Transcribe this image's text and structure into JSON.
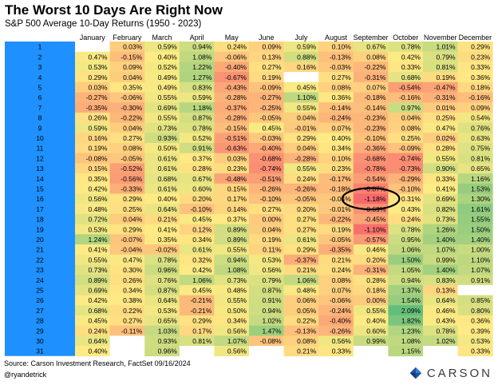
{
  "title": "The Worst 10 Days Are Right Now",
  "subtitle": "S&P 500 Average 10-Day Returns (1950 - 2023)",
  "source": "Source: Carson Investment Research, FactSet 09/16/2024",
  "handle": "@ryandetrick",
  "logo_text": "CARSON",
  "colors": {
    "row_label_bg": "#1e90ff",
    "circle": "#000000",
    "red": "#f8696b",
    "yellow": "#ffeb84",
    "green": "#63be7b"
  },
  "chart_data": {
    "type": "heatmap",
    "title": "The Worst 10 Days Are Right Now",
    "subtitle": "S&P 500 Average 10-Day Returns (1950 - 2023)",
    "columns": [
      "January",
      "February",
      "March",
      "April",
      "May",
      "June",
      "July",
      "August",
      "September",
      "October",
      "November",
      "December"
    ],
    "rows": [
      "1",
      "2",
      "3",
      "4",
      "5",
      "6",
      "7",
      "8",
      "9",
      "10",
      "11",
      "12",
      "13",
      "14",
      "15",
      "16",
      "17",
      "18",
      "19",
      "20",
      "21",
      "22",
      "23",
      "24",
      "25",
      "26",
      "27",
      "28",
      "29",
      "30",
      "31"
    ],
    "values": [
      [
        null,
        0.03,
        0.59,
        0.94,
        0.24,
        0.09,
        0.59,
        0.1,
        0.67,
        0.78,
        1.01,
        0.29
      ],
      [
        0.47,
        -0.15,
        0.4,
        1.08,
        -0.06,
        0.13,
        0.88,
        -0.13,
        0.08,
        0.42,
        0.79,
        0.23
      ],
      [
        0.53,
        0.09,
        0.52,
        1.22,
        -0.4,
        0.27,
        0.16,
        -0.03,
        -0.22,
        0.33,
        0.81,
        0.33
      ],
      [
        0.29,
        0.04,
        0.49,
        1.27,
        -0.67,
        0.19,
        null,
        0.27,
        -0.31,
        0.68,
        0.19,
        0.36
      ],
      [
        0.03,
        0.35,
        0.49,
        0.83,
        -0.43,
        -0.09,
        0.45,
        0.08,
        0.07,
        -0.54,
        -0.47,
        0.18
      ],
      [
        -0.27,
        -0.06,
        0.55,
        0.59,
        -0.28,
        -0.27,
        1.1,
        0.36,
        -0.18,
        -0.16,
        -0.31,
        -0.16
      ],
      [
        -0.35,
        -0.3,
        0.69,
        1.18,
        -0.37,
        -0.25,
        0.55,
        -0.14,
        -0.14,
        0.97,
        0.01,
        0.09
      ],
      [
        0.26,
        -0.22,
        0.55,
        0.87,
        -0.28,
        -0.05,
        0.04,
        -0.24,
        -0.23,
        0.04,
        0.25,
        0.54
      ],
      [
        0.59,
        0.04,
        0.73,
        0.78,
        -0.15,
        0.45,
        -0.01,
        0.07,
        -0.23,
        0.08,
        0.47,
        0.76
      ],
      [
        0.16,
        0.27,
        0.93,
        0.52,
        -0.51,
        -0.03,
        0.29,
        0.4,
        -0.1,
        0.25,
        0.02,
        0.63
      ],
      [
        0.19,
        0.08,
        0.5,
        0.91,
        -0.63,
        -0.4,
        0.04,
        0.34,
        -0.36,
        -0.09,
        0.28,
        0.75
      ],
      [
        -0.08,
        -0.05,
        0.61,
        0.37,
        0.03,
        -0.68,
        -0.28,
        0.1,
        -0.68,
        -0.74,
        0.55,
        0.81
      ],
      [
        0.15,
        -0.52,
        0.61,
        0.28,
        0.23,
        -0.74,
        0.55,
        0.23,
        -0.78,
        -0.73,
        0.9,
        0.65
      ],
      [
        0.35,
        -0.56,
        0.68,
        0.67,
        -0.48,
        -0.51,
        0.24,
        -0.17,
        -0.54,
        -0.29,
        0.33,
        1.16
      ],
      [
        0.42,
        -0.33,
        0.61,
        0.6,
        0.15,
        -0.26,
        -0.26,
        -0.18,
        -0.87,
        -0.1,
        0.41,
        1.53
      ],
      [
        0.56,
        0.29,
        0.4,
        0.2,
        0.17,
        -0.1,
        -0.05,
        -0.04,
        -1.18,
        0.31,
        0.69,
        1.3
      ],
      [
        0.48,
        0.25,
        0.64,
        -0.1,
        0.14,
        0.27,
        0.2,
        -0.01,
        -0.69,
        0.43,
        0.82,
        1.61
      ],
      [
        0.72,
        0.04,
        0.21,
        0.45,
        0.37,
        0.0,
        0.27,
        -0.22,
        -0.45,
        0.24,
        0.73,
        1.55
      ],
      [
        0.53,
        0.29,
        0.41,
        0.12,
        0.89,
        0.04,
        0.27,
        0.19,
        -1.1,
        0.78,
        1.26,
        1.5
      ],
      [
        1.24,
        -0.07,
        0.35,
        0.34,
        0.89,
        0.19,
        0.61,
        -0.05,
        -0.57,
        0.95,
        1.4,
        1.4
      ],
      [
        0.41,
        -0.04,
        -0.02,
        0.61,
        0.55,
        0.11,
        0.29,
        -0.35,
        0.46,
        1.06,
        1.07,
        1.0
      ],
      [
        0.55,
        0.47,
        0.78,
        0.32,
        0.94,
        0.53,
        -0.37,
        0.21,
        0.2,
        1.5,
        0.99,
        1.1
      ],
      [
        0.73,
        0.3,
        0.96,
        0.42,
        1.08,
        0.56,
        0.21,
        0.24,
        -0.31,
        1.05,
        1.4,
        1.07
      ],
      [
        0.89,
        0.26,
        0.76,
        1.06,
        0.73,
        0.79,
        1.06,
        0.08,
        0.28,
        0.94,
        0.83,
        0.91
      ],
      [
        0.69,
        0.34,
        0.87,
        0.45,
        0.48,
        0.87,
        0.48,
        0.07,
        0.18,
        1.37,
        0.13,
        null
      ],
      [
        0.42,
        0.38,
        0.64,
        -0.21,
        0.55,
        0.91,
        0.06,
        -0.06,
        0.0,
        1.54,
        0.64,
        0.85
      ],
      [
        0.68,
        0.22,
        0.53,
        -0.21,
        0.5,
        0.94,
        0.05,
        -0.24,
        0.55,
        2.09,
        0.46,
        0.8
      ],
      [
        0.45,
        0.27,
        0.65,
        0.29,
        0.34,
        1.02,
        0.22,
        -0.4,
        0.4,
        1.82,
        0.43,
        0.36
      ],
      [
        0.24,
        -0.11,
        1.03,
        0.17,
        0.56,
        1.47,
        -0.13,
        -0.26,
        0.6,
        1.23,
        0.78,
        0.39
      ],
      [
        0.64,
        null,
        0.93,
        0.81,
        1.07,
        -0.08,
        0.08,
        0.56,
        0.99,
        1.08,
        1.02,
        0.53
      ],
      [
        0.4,
        null,
        0.96,
        null,
        0.56,
        null,
        0.21,
        0.33,
        null,
        1.15,
        null,
        0.33
      ]
    ],
    "highlight": {
      "row": "16",
      "column": "September",
      "value": -1.18
    },
    "color_scale": {
      "min": -1.18,
      "mid": 0.4,
      "max": 2.09
    }
  }
}
